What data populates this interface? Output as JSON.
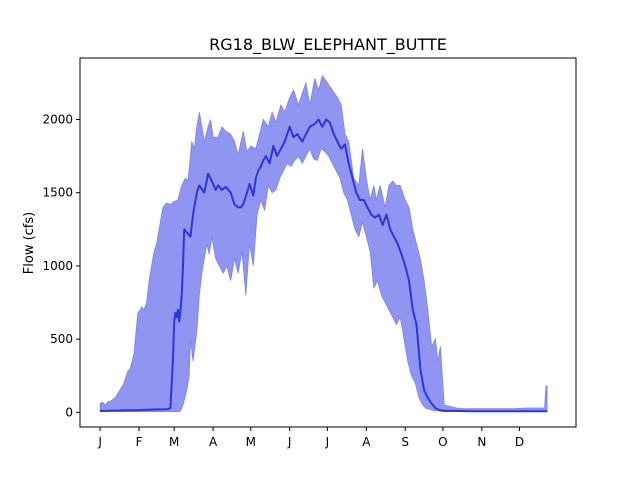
{
  "chart_data": {
    "type": "area",
    "title": "RG18_BLW_ELEPHANT_BUTTE",
    "xlabel": "",
    "ylabel": "Flow (cfs)",
    "x_ticks": [
      "J",
      "F",
      "M",
      "A",
      "M",
      "J",
      "J",
      "A",
      "S",
      "O",
      "N",
      "D"
    ],
    "x_tick_days": [
      1,
      32,
      60,
      91,
      121,
      152,
      182,
      213,
      244,
      274,
      305,
      335
    ],
    "xlim": [
      -15,
      380
    ],
    "y_ticks": [
      0,
      500,
      1000,
      1500,
      2000
    ],
    "ylim": [
      -100,
      2420
    ],
    "grid": false,
    "legend": "none",
    "colors": {
      "band": "#7b82ee",
      "median": "#2c36dd"
    },
    "series": [
      {
        "role": "max",
        "x": [
          1,
          3,
          5,
          7,
          10,
          13,
          16,
          20,
          23,
          25,
          28,
          31,
          33,
          34,
          36,
          38,
          40,
          42,
          44,
          46,
          48,
          49,
          51,
          54,
          57,
          60,
          63,
          66,
          69,
          71,
          74,
          76,
          78,
          80,
          84,
          87,
          89,
          91,
          95,
          98,
          101,
          105,
          108,
          111,
          115,
          118,
          121,
          125,
          128,
          131,
          135,
          138,
          141,
          145,
          148,
          152,
          155,
          159,
          162,
          165,
          168,
          172,
          175,
          178,
          182,
          186,
          190,
          193,
          196,
          199,
          203,
          207,
          210,
          213,
          216,
          219,
          221,
          224,
          228,
          231,
          234,
          237,
          240,
          244,
          247,
          250,
          253,
          256,
          259,
          262,
          265,
          268,
          270,
          272,
          275,
          280,
          285,
          290,
          300,
          310,
          320,
          330,
          340,
          350,
          355,
          356,
          357
        ],
        "y": [
          60,
          70,
          50,
          70,
          80,
          100,
          140,
          200,
          280,
          300,
          400,
          680,
          700,
          720,
          700,
          750,
          900,
          1000,
          1100,
          1150,
          1250,
          1300,
          1400,
          1430,
          1420,
          1440,
          1450,
          1550,
          1600,
          1580,
          1850,
          1800,
          1950,
          2050,
          1850,
          1950,
          2000,
          1880,
          1880,
          1950,
          1920,
          1900,
          1850,
          1760,
          1920,
          1780,
          1820,
          1800,
          1900,
          2000,
          1950,
          2050,
          1980,
          2100,
          2050,
          2150,
          2200,
          2100,
          2180,
          2250,
          2100,
          2280,
          2200,
          2300,
          2250,
          2200,
          2150,
          2100,
          1900,
          1850,
          1600,
          1550,
          1800,
          1600,
          1450,
          1550,
          1450,
          1550,
          1400,
          1550,
          1580,
          1550,
          1550,
          1450,
          1400,
          1250,
          1150,
          1050,
          900,
          700,
          450,
          500,
          350,
          450,
          50,
          40,
          30,
          25,
          25,
          25,
          25,
          25,
          30,
          30,
          30,
          180,
          180
        ]
      },
      {
        "role": "median",
        "x": [
          1,
          5,
          10,
          15,
          20,
          25,
          30,
          35,
          40,
          45,
          50,
          55,
          57,
          59,
          60,
          61,
          62,
          63,
          64,
          65,
          66,
          67,
          68,
          70,
          73,
          75,
          78,
          80,
          84,
          87,
          90,
          93,
          95,
          98,
          101,
          105,
          108,
          111,
          113,
          115,
          118,
          120,
          123,
          125,
          127,
          129,
          131,
          133,
          136,
          139,
          142,
          145,
          148,
          152,
          155,
          158,
          162,
          165,
          168,
          172,
          175,
          178,
          181,
          184,
          187,
          190,
          193,
          196,
          199,
          202,
          205,
          208,
          211,
          214,
          217,
          220,
          223,
          226,
          229,
          232,
          235,
          238,
          241,
          244,
          247,
          250,
          253,
          256,
          259,
          262,
          265,
          268,
          270,
          272,
          274,
          278,
          285,
          295,
          310,
          330,
          350,
          357
        ],
        "y": [
          10,
          10,
          12,
          12,
          15,
          15,
          15,
          17,
          18,
          20,
          20,
          22,
          30,
          350,
          620,
          680,
          650,
          700,
          620,
          700,
          800,
          1000,
          1250,
          1230,
          1200,
          1350,
          1500,
          1550,
          1500,
          1630,
          1580,
          1520,
          1550,
          1520,
          1540,
          1500,
          1420,
          1400,
          1400,
          1420,
          1500,
          1560,
          1480,
          1600,
          1650,
          1680,
          1720,
          1750,
          1700,
          1820,
          1750,
          1800,
          1850,
          1950,
          1880,
          1900,
          1850,
          1900,
          1950,
          1970,
          2000,
          1950,
          2000,
          1980,
          1900,
          1850,
          1800,
          1830,
          1700,
          1600,
          1500,
          1450,
          1450,
          1400,
          1350,
          1330,
          1350,
          1280,
          1350,
          1250,
          1200,
          1150,
          1080,
          1000,
          900,
          700,
          600,
          300,
          150,
          100,
          60,
          30,
          20,
          15,
          12,
          10,
          10,
          8,
          8,
          8,
          8,
          8
        ]
      },
      {
        "role": "min",
        "x": [
          1,
          10,
          20,
          30,
          40,
          50,
          55,
          60,
          63,
          65,
          67,
          70,
          72,
          73,
          75,
          78,
          80,
          82,
          84,
          86,
          88,
          90,
          93,
          96,
          99,
          102,
          105,
          108,
          111,
          114,
          117,
          120,
          123,
          126,
          129,
          132,
          135,
          138,
          141,
          144,
          147,
          150,
          153,
          156,
          159,
          162,
          165,
          168,
          171,
          174,
          177,
          180,
          183,
          186,
          189,
          192,
          195,
          198,
          201,
          204,
          207,
          210,
          213,
          216,
          219,
          222,
          225,
          228,
          231,
          234,
          237,
          240,
          243,
          246,
          249,
          252,
          255,
          258,
          261,
          264,
          267,
          270,
          275,
          280,
          290,
          300,
          320,
          340,
          357
        ],
        "y": [
          5,
          5,
          5,
          5,
          5,
          5,
          5,
          5,
          5,
          10,
          50,
          150,
          250,
          500,
          350,
          550,
          800,
          950,
          1050,
          1150,
          1080,
          1200,
          1050,
          1000,
          950,
          1000,
          900,
          1050,
          950,
          1100,
          800,
          1150,
          1000,
          1350,
          1450,
          1380,
          1550,
          1500,
          1520,
          1600,
          1650,
          1700,
          1680,
          1720,
          1750,
          1700,
          1750,
          1800,
          1730,
          1720,
          1800,
          1780,
          1750,
          1700,
          1650,
          1600,
          1500,
          1450,
          1350,
          1250,
          1200,
          1300,
          1200,
          1100,
          850,
          900,
          800,
          750,
          700,
          650,
          600,
          650,
          500,
          350,
          250,
          200,
          100,
          50,
          25,
          20,
          10,
          10,
          5,
          5,
          5,
          5,
          5,
          5,
          5
        ]
      }
    ]
  }
}
